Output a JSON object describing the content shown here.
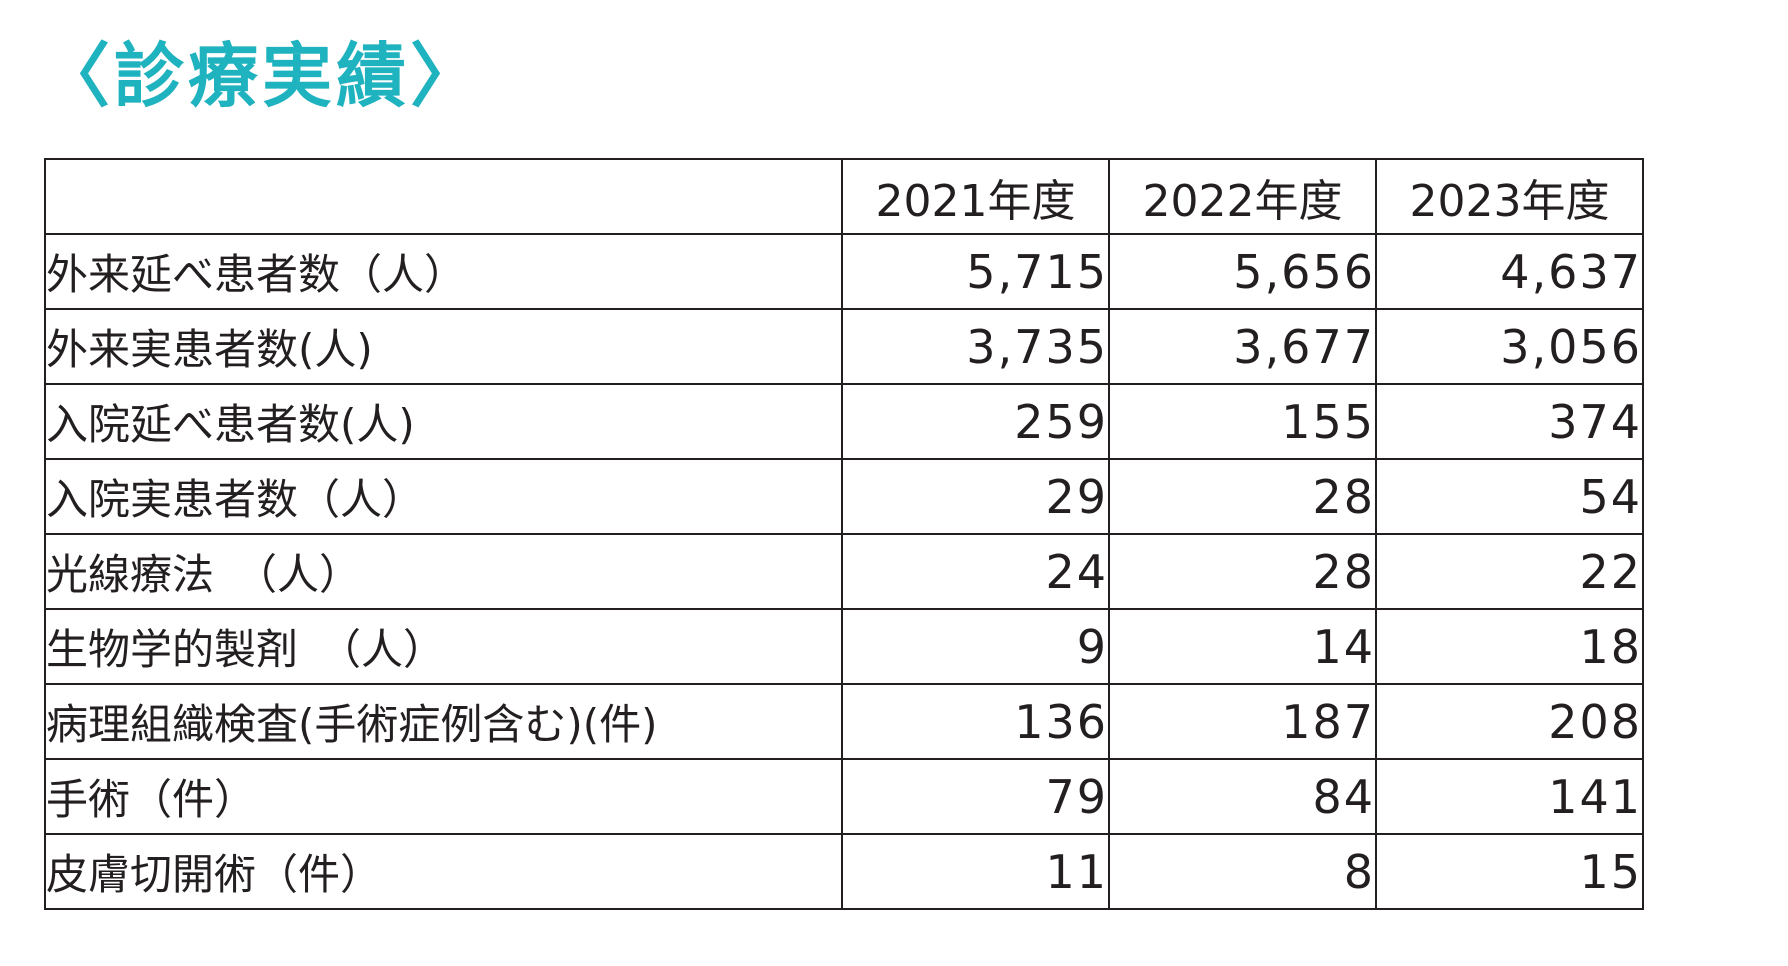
{
  "title": {
    "open_bracket": "〈",
    "text": "診療実績",
    "close_bracket": "〉",
    "color": "#1fb2bf"
  },
  "table": {
    "header": {
      "blank": "",
      "years": [
        "2021年度",
        "2022年度",
        "2023年度"
      ]
    },
    "rows": [
      {
        "label": "外来延べ患者数（人）",
        "values": [
          "5,715",
          "5,656",
          "4,637"
        ]
      },
      {
        "label": "外来実患者数(人)",
        "values": [
          "3,735",
          "3,677",
          "3,056"
        ]
      },
      {
        "label": "入院延べ患者数(人)",
        "values": [
          "259",
          "155",
          "374"
        ]
      },
      {
        "label": "入院実患者数（人）",
        "values": [
          "29",
          "28",
          "54"
        ]
      },
      {
        "label": "光線療法　（人）",
        "values": [
          "24",
          "28",
          "22"
        ]
      },
      {
        "label": "生物学的製剤　（人）",
        "values": [
          "9",
          "14",
          "18"
        ]
      },
      {
        "label": "病理組織検査(手術症例含む)(件)",
        "values": [
          "136",
          "187",
          "208"
        ]
      },
      {
        "label": "手術（件）",
        "values": [
          "79",
          "84",
          "141"
        ]
      },
      {
        "label": "皮膚切開術（件）",
        "values": [
          "11",
          "8",
          "15"
        ]
      }
    ]
  }
}
